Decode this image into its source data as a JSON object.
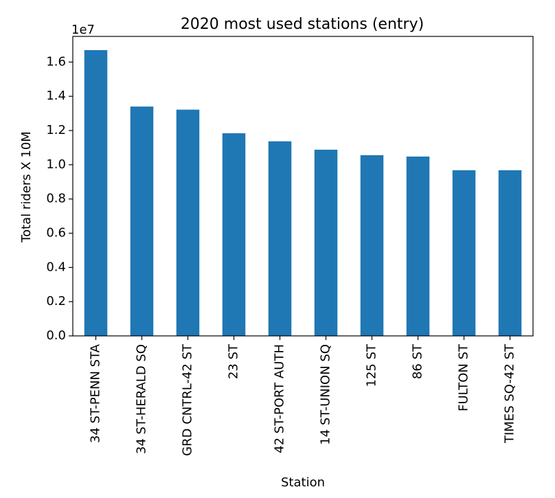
{
  "chart_data": {
    "type": "bar",
    "title": "2020 most used stations (entry)",
    "xlabel": "Station",
    "ylabel": "Total riders X 10M",
    "scale_label": "1e7",
    "categories": [
      "34 ST-PENN STA",
      "34 ST-HERALD SQ",
      "GRD CNTRL-42 ST",
      "23 ST",
      "42 ST-PORT AUTH",
      "14 ST-UNION SQ",
      "125 ST",
      "86 ST",
      "FULTON ST",
      "TIMES SQ-42 ST"
    ],
    "values": [
      16700000,
      13400000,
      13220000,
      11840000,
      11370000,
      10880000,
      10560000,
      10480000,
      9680000,
      9680000
    ],
    "yticks": [
      0.0,
      0.2,
      0.4,
      0.6,
      0.8,
      1.0,
      1.2,
      1.4,
      1.6
    ],
    "ytick_labels": [
      "0.0",
      "0.2",
      "0.4",
      "0.6",
      "0.8",
      "1.0",
      "1.2",
      "1.4",
      "1.6"
    ],
    "ylim": [
      0,
      1.75
    ],
    "grid": false,
    "bar_color": "#1f77b4"
  }
}
